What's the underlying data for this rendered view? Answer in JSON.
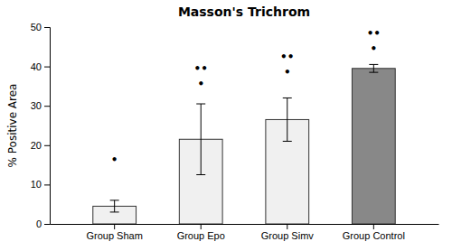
{
  "chart_data": {
    "type": "bar",
    "title": "Masson's Trichrom",
    "ylabel": "% Positive Area",
    "categories": [
      "Group Sham",
      "Group Epo",
      "Group Simv",
      "Group Control"
    ],
    "values": [
      4.5,
      21.5,
      26.5,
      39.5
    ],
    "errors": [
      1.5,
      9.0,
      5.5,
      1.0
    ],
    "colors": [
      "#f0f0f0",
      "#f0f0f0",
      "#f0f0f0",
      "#888888"
    ],
    "ylim": [
      0,
      50
    ],
    "yticks": [
      0,
      10,
      20,
      30,
      40,
      50
    ],
    "grid": false,
    "annotations": [
      {
        "text": "•",
        "x": "Group Sham",
        "y": 16.2
      },
      {
        "text": "••",
        "x": "Group Epo",
        "y": 39.5
      },
      {
        "text": "•",
        "x": "Group Epo",
        "y": 35.5
      },
      {
        "text": "••",
        "x": "Group Simv",
        "y": 42.5
      },
      {
        "text": "•",
        "x": "Group Simv",
        "y": 38.5
      },
      {
        "text": "••",
        "x": "Group Control",
        "y": 48.5
      },
      {
        "text": "•",
        "x": "Group Control",
        "y": 44.5
      }
    ]
  }
}
